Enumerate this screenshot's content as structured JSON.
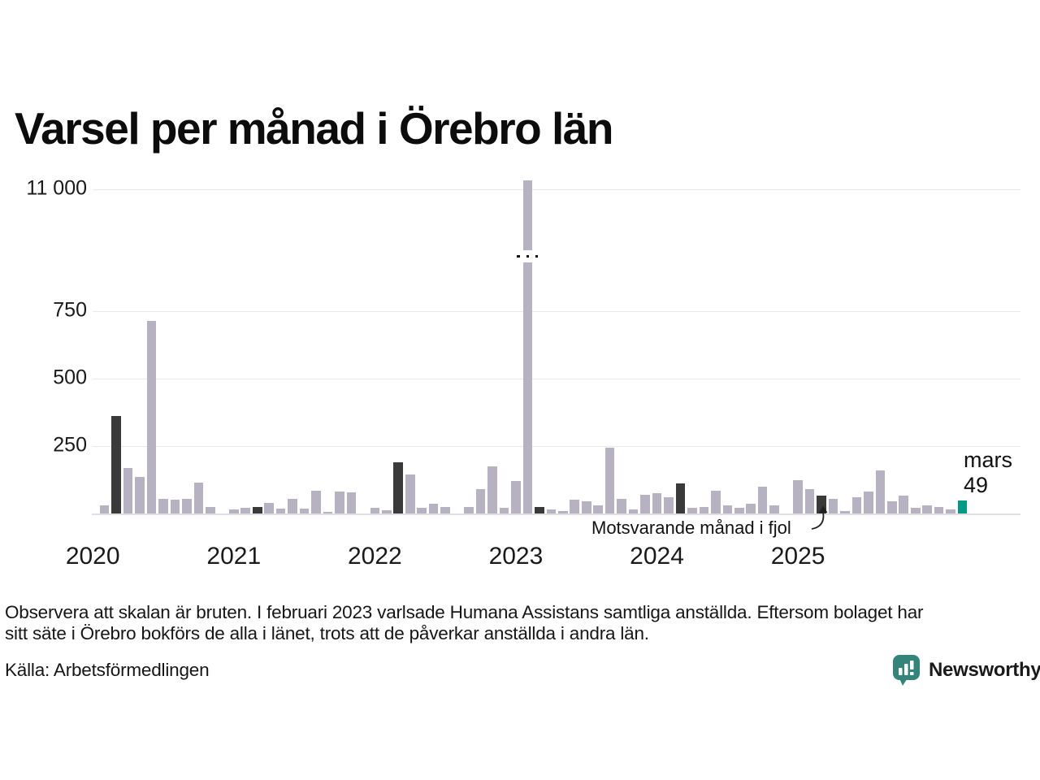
{
  "title": "Varsel per månad i Örebro län",
  "y_axis": {
    "tick_labels": [
      "11 000",
      "750",
      "500",
      "250"
    ]
  },
  "x_axis": {
    "year_labels": [
      "2020",
      "2021",
      "2022",
      "2023",
      "2024",
      "2025"
    ]
  },
  "annotation": {
    "text": "Motsvarande månad i fjol"
  },
  "current_label": {
    "month": "mars",
    "value": "49"
  },
  "footer": {
    "note_lines": [
      "Observera att skalan är bruten. I februari 2023 varlsade Humana Assistans samtliga anställda. Eftersom bolaget har",
      "sitt säte i Örebro bokförs de alla i länet, trots att de påverkar anställda i andra län."
    ],
    "source": "Källa: Arbetsförmedlingen",
    "brand": "Newsworthy"
  },
  "colors": {
    "bar": "#b6b2c2",
    "highlight": "#3a3a3a",
    "current": "#009b84",
    "grid": "#e8e7ea",
    "baseline": "#dfdee2",
    "logo": "#35847a",
    "text": "#1a1a1a"
  },
  "chart_data": {
    "type": "bar",
    "title": "Varsel per månad i Örebro län",
    "x_start": "2020-01",
    "x_end": "2026-03",
    "values": [
      0,
      30,
      360,
      170,
      135,
      715,
      55,
      50,
      55,
      115,
      25,
      0,
      15,
      20,
      25,
      40,
      18,
      55,
      18,
      85,
      5,
      80,
      78,
      0,
      20,
      12,
      190,
      145,
      20,
      35,
      25,
      0,
      25,
      90,
      175,
      20,
      120,
      11200,
      25,
      15,
      10,
      50,
      45,
      30,
      245,
      55,
      15,
      70,
      75,
      60,
      110,
      20,
      25,
      85,
      30,
      20,
      35,
      100,
      30,
      0,
      125,
      90,
      65,
      55,
      10,
      60,
      80,
      160,
      45,
      65,
      20,
      30,
      25,
      15,
      49
    ],
    "y_tick_values": [
      11000,
      750,
      500,
      250
    ],
    "y_tick_labels": [
      "11 000",
      "750",
      "500",
      "250"
    ],
    "x_year_labels": [
      "2020",
      "2021",
      "2022",
      "2023",
      "2024",
      "2025"
    ],
    "broken_scale": true,
    "break_segment": {
      "month": "2023-02",
      "value_estimate": 11200
    },
    "highlighted_months": [
      "2020-03",
      "2021-03",
      "2022-03",
      "2023-03",
      "2024-03",
      "2025-03"
    ],
    "highlight_meaning": "Motsvarande månad i fjol",
    "current_month": {
      "month": "2026-03",
      "label": "mars",
      "value": 49
    },
    "grid": "horizontal",
    "legend_position": "none"
  }
}
